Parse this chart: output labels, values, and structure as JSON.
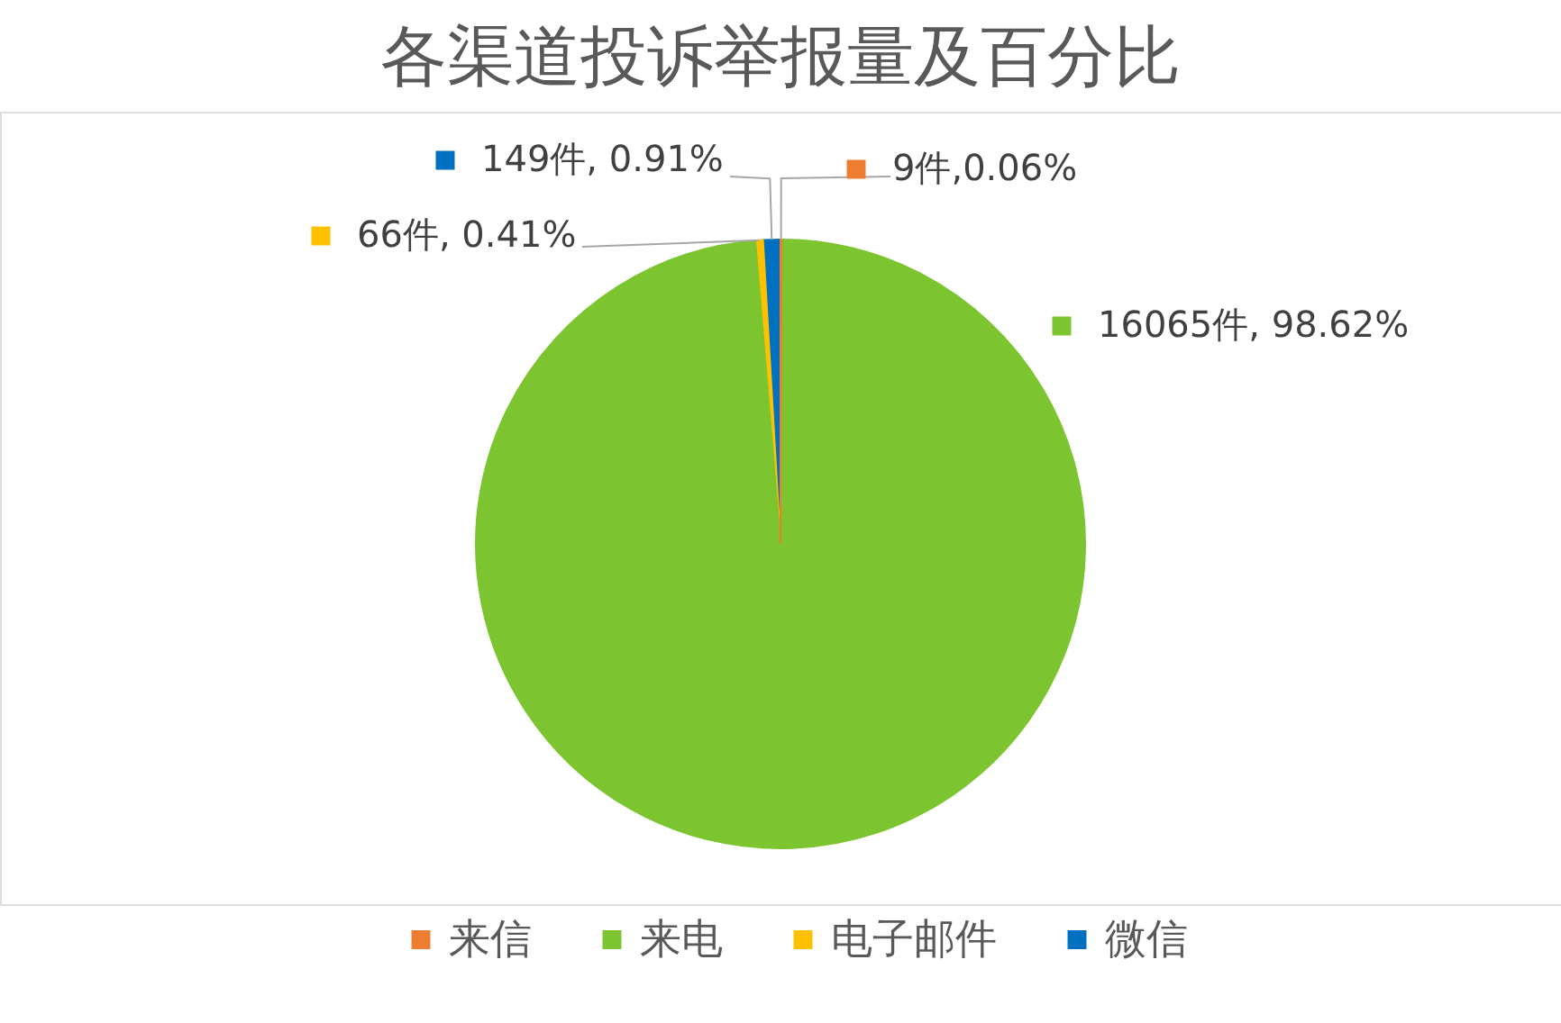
{
  "chart_data": {
    "type": "pie",
    "title": "各渠道投诉举报量及百分比",
    "categories": [
      "来信",
      "来电",
      "电子邮件",
      "微信"
    ],
    "values": [
      9,
      16065,
      66,
      149
    ],
    "colors": [
      "#ed7d31",
      "#7cc530",
      "#ffc000",
      "#0070c0"
    ],
    "value_labels": [
      "9件,0.06%",
      "16065件, 98.62%",
      "66件, 0.41%",
      "149件, 0.91%"
    ],
    "legend": "bottom"
  }
}
